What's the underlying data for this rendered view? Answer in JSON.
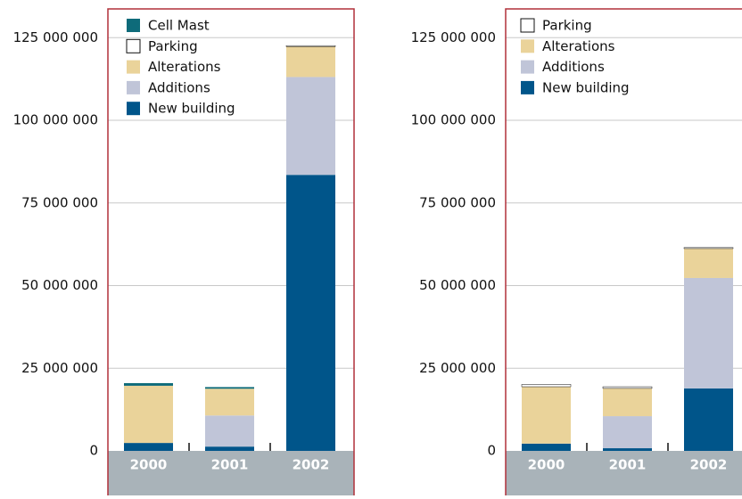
{
  "chart_data": [
    {
      "type": "bar",
      "stacked": true,
      "grid": true,
      "categories": [
        "2000",
        "2001",
        "2002"
      ],
      "series": [
        {
          "name": "New building",
          "color": "#00558a",
          "values": [
            2400000,
            1300000,
            83500000
          ]
        },
        {
          "name": "Additions",
          "color": "#c0c5d8",
          "values": [
            0,
            9400000,
            29600000
          ]
        },
        {
          "name": "Alterations",
          "color": "#ead39a",
          "values": [
            17300000,
            8100000,
            9200000
          ]
        },
        {
          "name": "Parking",
          "color": "#ffffff",
          "values": [
            0,
            0,
            300000
          ]
        },
        {
          "name": "Cell Mast",
          "color": "#0e6b7a",
          "values": [
            800000,
            500000,
            0
          ]
        }
      ],
      "ylim": [
        0,
        133700000
      ],
      "yticks": [
        0,
        {
          "value": 25000000,
          "label": "25 000 000"
        },
        {
          "value": 50000000,
          "label": "50 000 000"
        },
        {
          "value": 75000000,
          "label": "75 000 000"
        },
        {
          "value": 100000000,
          "label": "100 000 000"
        },
        {
          "value": 125000000,
          "label": "125 000 000"
        }
      ]
    },
    {
      "type": "bar",
      "stacked": true,
      "grid": true,
      "categories": [
        "2000",
        "2001",
        "2002"
      ],
      "series": [
        {
          "name": "New building",
          "color": "#00558a",
          "values": [
            2200000,
            800000,
            18900000
          ]
        },
        {
          "name": "Additions",
          "color": "#c0c5d8",
          "values": [
            0,
            9700000,
            33400000
          ]
        },
        {
          "name": "Alterations",
          "color": "#ead39a",
          "values": [
            17200000,
            8400000,
            8900000
          ]
        },
        {
          "name": "Parking",
          "color": "#ffffff",
          "values": [
            700000,
            500000,
            300000
          ]
        }
      ],
      "ylim": [
        0,
        133700000
      ],
      "yticks": [
        0,
        {
          "value": 25000000,
          "label": "25 000 000"
        },
        {
          "value": 50000000,
          "label": "50 000 000"
        },
        {
          "value": 75000000,
          "label": "75 000 000"
        },
        {
          "value": 100000000,
          "label": "100 000 000"
        },
        {
          "value": 125000000,
          "label": "125 000 000"
        }
      ]
    }
  ]
}
